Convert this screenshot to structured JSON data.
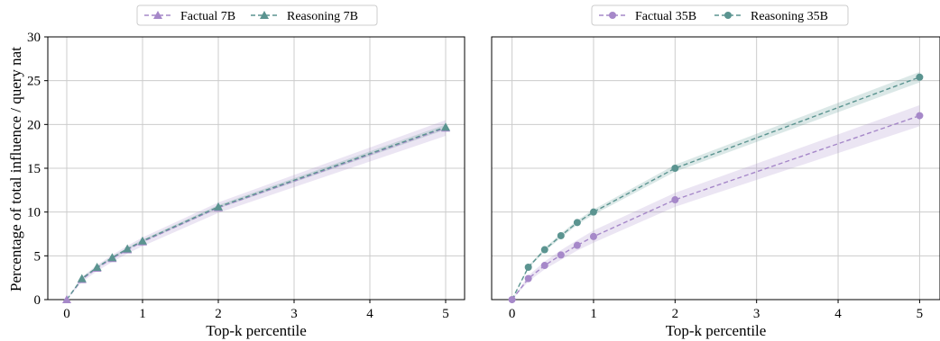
{
  "chart_data": [
    {
      "type": "line",
      "xlabel": "Top-k percentile",
      "ylabel": "Percentage of total influence / query nat",
      "xlim": [
        -0.25,
        5.25
      ],
      "ylim": [
        0,
        30
      ],
      "xticks": [
        "0",
        "1",
        "2",
        "3",
        "4",
        "5"
      ],
      "yticks": [
        "0",
        "5",
        "10",
        "15",
        "20",
        "25",
        "30"
      ],
      "grid": true,
      "legend_position": "top-center (above plot)",
      "x": [
        0,
        0.2,
        0.4,
        0.6,
        0.8,
        1,
        2,
        5
      ],
      "series": [
        {
          "name": "Factual 7B",
          "marker": "triangle",
          "color": "#a688c9",
          "values": [
            0,
            2.3,
            3.6,
            4.7,
            5.7,
            6.6,
            10.5,
            19.6
          ],
          "band_halfwidth": [
            0,
            0.3,
            0.35,
            0.4,
            0.45,
            0.5,
            0.6,
            0.9
          ]
        },
        {
          "name": "Reasoning 7B",
          "marker": "triangle",
          "color": "#5b9490",
          "values": [
            0,
            2.4,
            3.7,
            4.8,
            5.8,
            6.7,
            10.6,
            19.7
          ],
          "band_halfwidth": [
            0,
            0.1,
            0.1,
            0.12,
            0.12,
            0.15,
            0.2,
            0.3
          ]
        }
      ]
    },
    {
      "type": "line",
      "xlabel": "Top-k percentile",
      "ylabel": "",
      "xlim": [
        -0.25,
        5.25
      ],
      "ylim": [
        0,
        30
      ],
      "xticks": [
        "0",
        "1",
        "2",
        "3",
        "4",
        "5"
      ],
      "yticks": [],
      "grid": true,
      "legend_position": "top-center (above plot)",
      "x": [
        0,
        0.2,
        0.4,
        0.6,
        0.8,
        1,
        2,
        5
      ],
      "series": [
        {
          "name": "Factual 35B",
          "marker": "circle",
          "color": "#a688c9",
          "values": [
            0,
            2.4,
            3.9,
            5.1,
            6.2,
            7.2,
            11.4,
            21.0
          ],
          "band_halfwidth": [
            0,
            0.35,
            0.45,
            0.55,
            0.6,
            0.7,
            0.8,
            1.2
          ]
        },
        {
          "name": "Reasoning 35B",
          "marker": "circle",
          "color": "#5b9490",
          "values": [
            0,
            3.7,
            5.7,
            7.3,
            8.8,
            10.0,
            15.0,
            25.4
          ],
          "band_halfwidth": [
            0,
            0.15,
            0.2,
            0.25,
            0.25,
            0.3,
            0.4,
            0.6
          ]
        }
      ]
    }
  ]
}
